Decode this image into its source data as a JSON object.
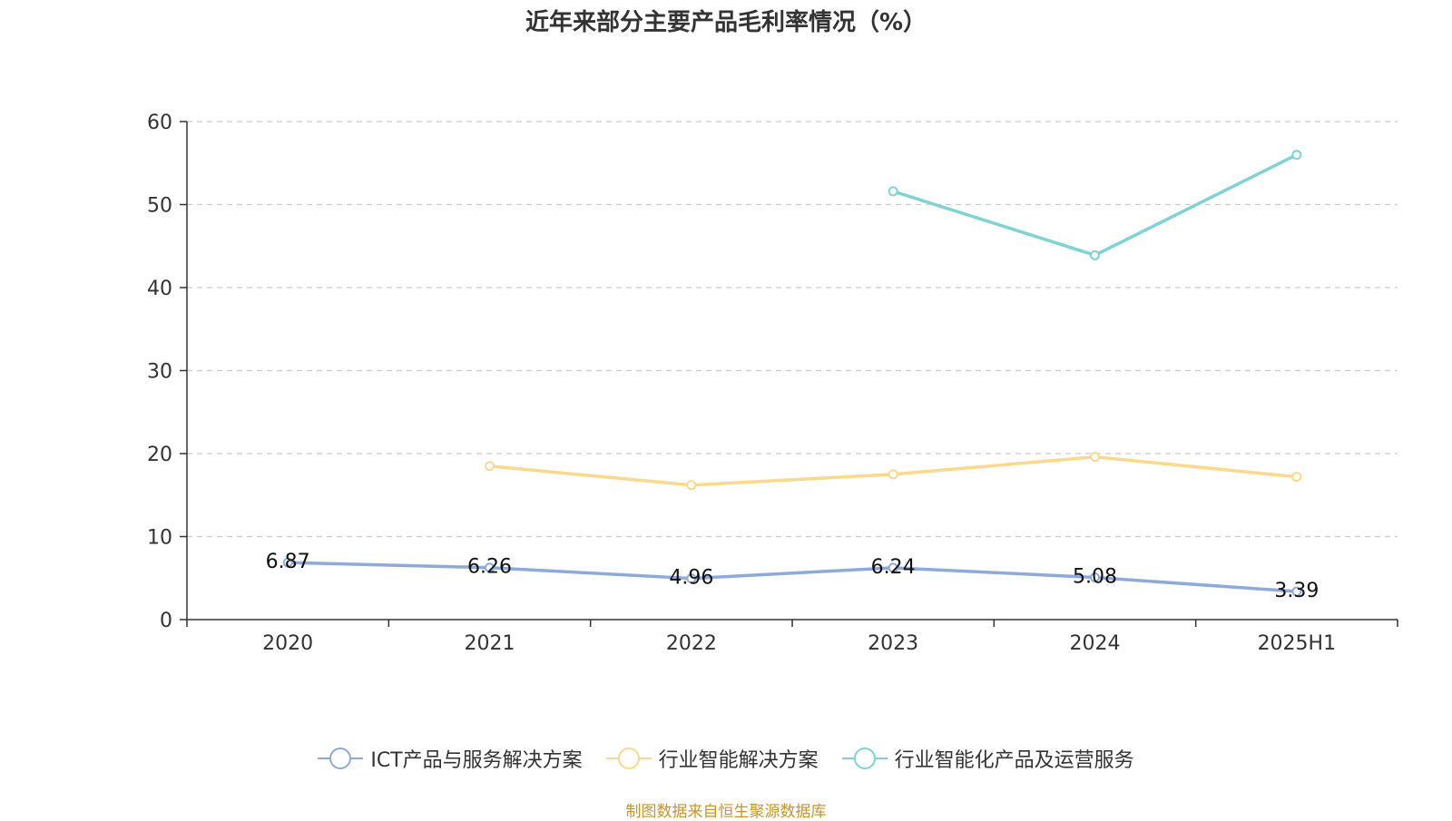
{
  "title": "近年来部分主要产品毛利率情况（%）",
  "source_note": "制图数据来自恒生聚源数据库",
  "chart_data": {
    "type": "line",
    "title": "近年来部分主要产品毛利率情况（%）",
    "xlabel": "",
    "ylabel": "",
    "categories": [
      "2020",
      "2021",
      "2022",
      "2023",
      "2024",
      "2025H1"
    ],
    "ylim": [
      0,
      60
    ],
    "yticks": [
      0,
      10,
      20,
      30,
      40,
      50,
      60
    ],
    "grid": true,
    "legend_position": "bottom",
    "series": [
      {
        "name": "ICT产品与服务解决方案",
        "color": "#8eaadb",
        "values": [
          6.87,
          6.26,
          4.96,
          6.24,
          5.08,
          3.39
        ],
        "labels": [
          "6.87",
          "6.26",
          "4.96",
          "6.24",
          "5.08",
          "3.39"
        ]
      },
      {
        "name": "行业智能解决方案",
        "color": "#fbd88c",
        "values": [
          null,
          18.5,
          16.2,
          17.5,
          19.6,
          17.2
        ]
      },
      {
        "name": "行业智能化产品及运营服务",
        "color": "#7fd3d3",
        "values": [
          null,
          null,
          null,
          51.6,
          43.9,
          56.0
        ]
      }
    ]
  }
}
